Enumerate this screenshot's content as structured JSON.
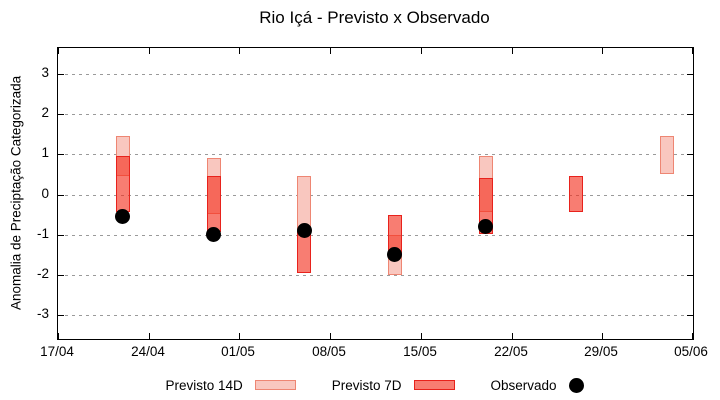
{
  "chart_data": {
    "type": "bar",
    "title": "Rio Içá - Previsto x Observado",
    "xlabel": "",
    "ylabel": "Anomalia de Preciptação Categorizada",
    "grid": true,
    "legend_position": "bottom",
    "x_ticks": [
      "17/04",
      "24/04",
      "01/05",
      "08/05",
      "15/05",
      "22/05",
      "29/05",
      "05/06"
    ],
    "x_tick_days": [
      0,
      7,
      14,
      21,
      28,
      35,
      42,
      49
    ],
    "x_total_days": 49,
    "y_ticks": [
      3,
      2,
      1,
      0,
      -1,
      -2,
      -3
    ],
    "ylim": [
      -3.6,
      3.65
    ],
    "colors": {
      "forecast_14d_fill": "#f9c7bf",
      "forecast_14d_border": "#ee8673",
      "forecast_7d_fill": "rgba(244,45,28,0.62)",
      "forecast_7d_border": "#e8221c",
      "observed": "#000000",
      "gridline": "#9a9a9a"
    },
    "series": [
      {
        "name": "Previsto 14D",
        "type": "range-bar",
        "points": [
          {
            "date": "22/04",
            "day": 5,
            "low": 0.45,
            "high": 1.45
          },
          {
            "date": "29/04",
            "day": 12,
            "low": -0.5,
            "high": 0.9
          },
          {
            "date": "06/05",
            "day": 19,
            "low": -0.9,
            "high": 0.45
          },
          {
            "date": "13/05",
            "day": 26,
            "low": -2.0,
            "high": -1.0
          },
          {
            "date": "20/05",
            "day": 33,
            "low": -0.45,
            "high": 0.95
          },
          {
            "date": "03/06",
            "day": 47,
            "low": 0.5,
            "high": 1.45
          }
        ]
      },
      {
        "name": "Previsto 7D",
        "type": "range-bar",
        "points": [
          {
            "date": "22/04",
            "day": 5,
            "low": -0.45,
            "high": 0.95
          },
          {
            "date": "29/04",
            "day": 12,
            "low": -0.95,
            "high": 0.45
          },
          {
            "date": "06/05",
            "day": 19,
            "low": -1.95,
            "high": -0.9
          },
          {
            "date": "13/05",
            "day": 26,
            "low": -1.5,
            "high": -0.5
          },
          {
            "date": "20/05",
            "day": 33,
            "low": -1.0,
            "high": 0.4
          },
          {
            "date": "27/05",
            "day": 40,
            "low": -0.45,
            "high": 0.45
          }
        ]
      },
      {
        "name": "Observado",
        "type": "scatter",
        "points": [
          {
            "date": "22/04",
            "day": 5,
            "value": -0.55
          },
          {
            "date": "29/04",
            "day": 12,
            "value": -1.0
          },
          {
            "date": "06/05",
            "day": 19,
            "value": -0.9
          },
          {
            "date": "13/05",
            "day": 26,
            "value": -1.5
          },
          {
            "date": "20/05",
            "day": 33,
            "value": -0.8
          }
        ]
      }
    ]
  }
}
